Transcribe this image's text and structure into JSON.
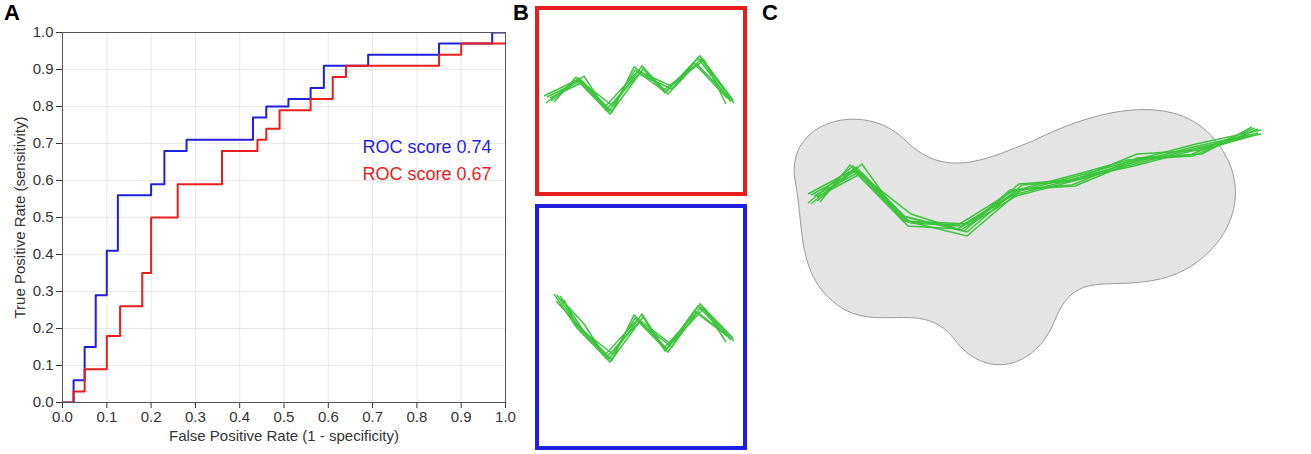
{
  "panel_labels": [
    "A",
    "B",
    "C"
  ],
  "chart_data": {
    "type": "line",
    "line_style": "step",
    "x_label": "False Positive Rate (1 - specificity)",
    "y_label": "True Positive Rate (sensitivity)",
    "xlim": [
      0,
      1
    ],
    "ylim": [
      0,
      1
    ],
    "xticks": [
      {
        "value": 0,
        "label": "0.0"
      },
      {
        "value": 0.1,
        "label": "0.1"
      },
      {
        "value": 0.2,
        "label": "0.2"
      },
      {
        "value": 0.3,
        "label": "0.3"
      },
      {
        "value": 0.4,
        "label": "0.4"
      },
      {
        "value": 0.5,
        "label": "0.5"
      },
      {
        "value": 0.6,
        "label": "0.6"
      },
      {
        "value": 0.7,
        "label": "0.7"
      },
      {
        "value": 0.8,
        "label": "0.8"
      },
      {
        "value": 0.9,
        "label": "0.9"
      },
      {
        "value": 1,
        "label": "1.0"
      }
    ],
    "yticks": [
      {
        "value": 0,
        "label": "0.0"
      },
      {
        "value": 0.1,
        "label": "0.1"
      },
      {
        "value": 0.2,
        "label": "0.2"
      },
      {
        "value": 0.3,
        "label": "0.3"
      },
      {
        "value": 0.4,
        "label": "0.4"
      },
      {
        "value": 0.5,
        "label": "0.5"
      },
      {
        "value": 0.6,
        "label": "0.6"
      },
      {
        "value": 0.7,
        "label": "0.7"
      },
      {
        "value": 0.8,
        "label": "0.8"
      },
      {
        "value": 0.9,
        "label": "0.9"
      },
      {
        "value": 1,
        "label": "1.0"
      }
    ],
    "grid": true,
    "legend": "right",
    "series": [
      {
        "name": "ROC score 0.74",
        "color": "#1f1fe0",
        "x": [
          0,
          0.025,
          0.05,
          0.075,
          0.1,
          0.125,
          0.2,
          0.23,
          0.28,
          0.43,
          0.46,
          0.51,
          0.56,
          0.59,
          0.69,
          0.85,
          0.97,
          1
        ],
        "values": [
          0,
          0.06,
          0.15,
          0.29,
          0.41,
          0.56,
          0.59,
          0.68,
          0.71,
          0.77,
          0.8,
          0.82,
          0.85,
          0.91,
          0.94,
          0.97,
          1,
          1
        ]
      },
      {
        "name": "ROC score 0.67",
        "color": "#e81e1e",
        "x": [
          0,
          0.025,
          0.05,
          0.1,
          0.13,
          0.18,
          0.2,
          0.26,
          0.36,
          0.44,
          0.46,
          0.49,
          0.56,
          0.61,
          0.64,
          0.85,
          0.9,
          1
        ],
        "values": [
          0,
          0.03,
          0.09,
          0.18,
          0.26,
          0.35,
          0.5,
          0.59,
          0.68,
          0.71,
          0.74,
          0.79,
          0.82,
          0.88,
          0.91,
          0.94,
          0.97,
          0.97
        ]
      }
    ]
  }
}
